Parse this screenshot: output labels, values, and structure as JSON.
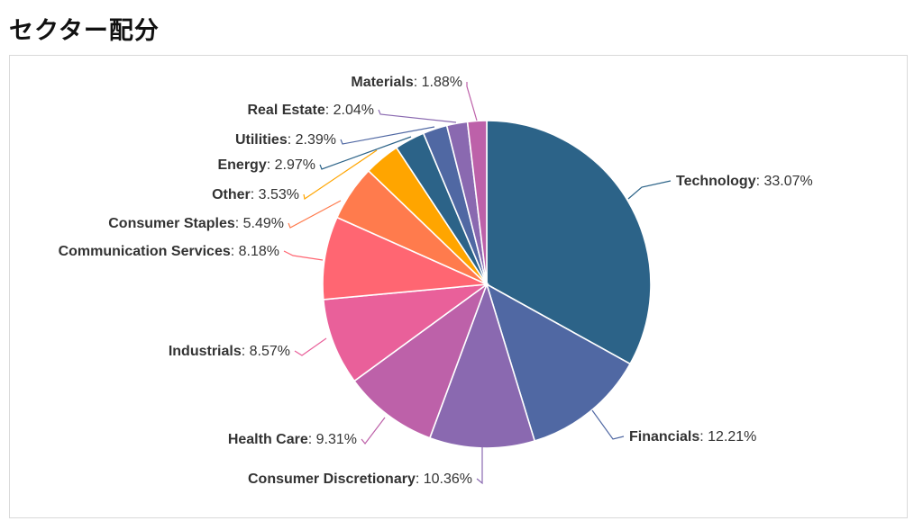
{
  "page": {
    "title": "セクター配分"
  },
  "chart_data": {
    "type": "pie",
    "title": "",
    "start": "top, clockwise",
    "label_format": "{name}: {value}%",
    "slices": [
      {
        "name": "Technology",
        "value": 33.07,
        "value_text": "33.07%",
        "color": "#2c6388"
      },
      {
        "name": "Financials",
        "value": 12.21,
        "value_text": "12.21%",
        "color": "#5068a3"
      },
      {
        "name": "Consumer Discretionary",
        "value": 10.36,
        "value_text": "10.36%",
        "color": "#8a69b0"
      },
      {
        "name": "Health Care",
        "value": 9.31,
        "value_text": "9.31%",
        "color": "#bd61a9"
      },
      {
        "name": "Industrials",
        "value": 8.57,
        "value_text": "8.57%",
        "color": "#e9609a"
      },
      {
        "name": "Communication Services",
        "value": 8.18,
        "value_text": "8.18%",
        "color": "#ff6672"
      },
      {
        "name": "Consumer Staples",
        "value": 5.49,
        "value_text": "5.49%",
        "color": "#ff7b4d"
      },
      {
        "name": "Other",
        "value": 3.53,
        "value_text": "3.53%",
        "color": "#ffa500"
      },
      {
        "name": "Energy",
        "value": 2.97,
        "value_text": "2.97%",
        "color": "#2c6388"
      },
      {
        "name": "Utilities",
        "value": 2.39,
        "value_text": "2.39%",
        "color": "#5068a3"
      },
      {
        "name": "Real Estate",
        "value": 2.04,
        "value_text": "2.04%",
        "color": "#8a69b0"
      },
      {
        "name": "Materials",
        "value": 1.88,
        "value_text": "1.88%",
        "color": "#bd61a9"
      }
    ]
  }
}
